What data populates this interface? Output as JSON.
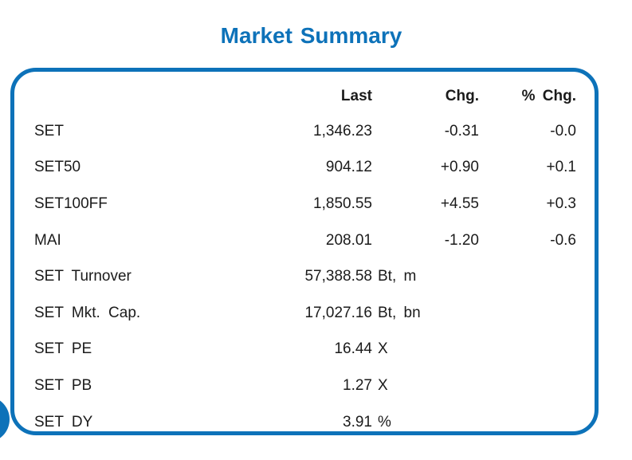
{
  "title": "Market Summary",
  "colors": {
    "accent_blue": "#0d72b9",
    "text": "#1b1b1b",
    "background": "#ffffff"
  },
  "table": {
    "headers": {
      "instrument": "",
      "last": "Last",
      "chg": "Chg.",
      "pct_chg": "% Chg."
    },
    "rows": [
      {
        "label": "SET",
        "last": "1,346.23",
        "chg": "-0.31",
        "pct_chg": "-0.0",
        "unit": ""
      },
      {
        "label": "SET50",
        "last": "904.12",
        "chg": "+0.90",
        "pct_chg": "+0.1",
        "unit": ""
      },
      {
        "label": "SET100FF",
        "last": "1,850.55",
        "chg": "+4.55",
        "pct_chg": "+0.3",
        "unit": ""
      },
      {
        "label": "MAI",
        "last": "208.01",
        "chg": "-1.20",
        "pct_chg": "-0.6",
        "unit": ""
      },
      {
        "label": "SET Turnover",
        "last": "57,388.58",
        "chg": "",
        "pct_chg": "",
        "unit": "Bt, m"
      },
      {
        "label": "SET Mkt. Cap.",
        "last": "17,027.16",
        "chg": "",
        "pct_chg": "",
        "unit": "Bt, bn"
      },
      {
        "label": "SET PE",
        "last": "16.44",
        "chg": "",
        "pct_chg": "",
        "unit": "X"
      },
      {
        "label": "SET PB",
        "last": "1.27",
        "chg": "",
        "pct_chg": "",
        "unit": "X"
      },
      {
        "label": "SET DY",
        "last": "3.91",
        "chg": "",
        "pct_chg": "",
        "unit": "%"
      }
    ]
  },
  "decoration": {
    "bottom_left_circle": "blue-filled-circle"
  }
}
